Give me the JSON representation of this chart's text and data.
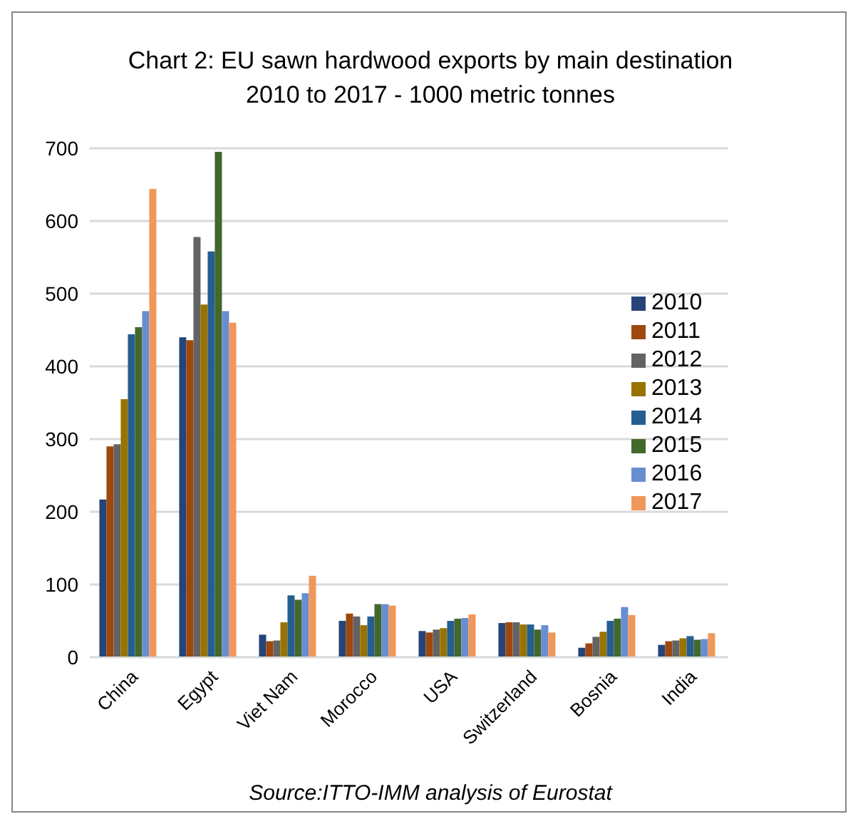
{
  "chart_data": {
    "type": "bar",
    "title": "Chart 2: EU sawn hardwood exports by main destination\n2010 to 2017 - 1000 metric tonnes",
    "categories": [
      "China",
      "Egypt",
      "Viet Nam",
      "Morocco",
      "USA",
      "Switzerland",
      "Bosnia",
      "India"
    ],
    "series": [
      {
        "name": "2010",
        "color": "#264478",
        "values": [
          217,
          440,
          31,
          50,
          36,
          47,
          13,
          17
        ]
      },
      {
        "name": "2011",
        "color": "#9e480e",
        "values": [
          290,
          436,
          22,
          60,
          34,
          48,
          19,
          22
        ]
      },
      {
        "name": "2012",
        "color": "#636363",
        "values": [
          293,
          578,
          23,
          56,
          38,
          48,
          28,
          23
        ]
      },
      {
        "name": "2013",
        "color": "#997300",
        "values": [
          355,
          485,
          48,
          44,
          40,
          45,
          35,
          26
        ]
      },
      {
        "name": "2014",
        "color": "#255e91",
        "values": [
          444,
          558,
          85,
          56,
          50,
          45,
          50,
          29
        ]
      },
      {
        "name": "2015",
        "color": "#43682b",
        "values": [
          454,
          695,
          79,
          73,
          53,
          38,
          53,
          24
        ]
      },
      {
        "name": "2016",
        "color": "#698ed0",
        "values": [
          476,
          476,
          88,
          73,
          54,
          44,
          69,
          25
        ]
      },
      {
        "name": "2017",
        "color": "#f1975a",
        "values": [
          644,
          460,
          112,
          71,
          59,
          34,
          58,
          33
        ]
      }
    ],
    "ylim": [
      0,
      700
    ],
    "yticks": [
      0,
      100,
      200,
      300,
      400,
      500,
      600,
      700
    ],
    "grid": "y",
    "legend": "top right",
    "annotations": [
      "Source:ITTO-IMM analysis of Eurostat"
    ]
  }
}
